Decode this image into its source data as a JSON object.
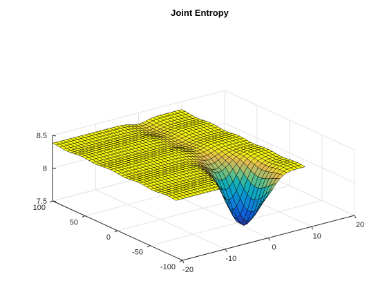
{
  "chart_data": {
    "type": "surface",
    "title": "Joint Entropy",
    "xlabel": "",
    "ylabel": "",
    "zlabel": "",
    "xlim": [
      -20,
      20
    ],
    "ylim": [
      -100,
      100
    ],
    "zlim": [
      7.5,
      8.5
    ],
    "x_ticks": [
      -20,
      -10,
      0,
      10,
      20
    ],
    "y_ticks": [
      -100,
      -50,
      0,
      50,
      100
    ],
    "z_ticks": [
      7.5,
      8,
      8.5
    ],
    "x_tick_labels": [
      "-20",
      "-10",
      "0",
      "10",
      "20"
    ],
    "y_tick_labels": [
      "-100",
      "-50",
      "0",
      "50",
      "100"
    ],
    "z_tick_labels": [
      "7.5",
      "8",
      "8.5"
    ],
    "colormap": "parula",
    "edge_color": "#000000",
    "grid": true,
    "surface_description": {
      "x_range": [
        -20,
        10
      ],
      "y_range": [
        -90,
        100
      ],
      "plateau_z": 8.37,
      "min_point": {
        "x": 0,
        "y": -60,
        "z": 7.5
      },
      "ridge_along_y_at_x": 0
    }
  }
}
